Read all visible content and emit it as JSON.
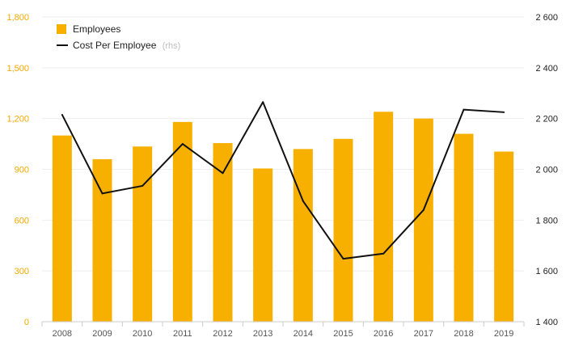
{
  "chart_data": {
    "type": "bar",
    "categories": [
      "2008",
      "2009",
      "2010",
      "2011",
      "2012",
      "2013",
      "2014",
      "2015",
      "2016",
      "2017",
      "2018",
      "2019"
    ],
    "series": [
      {
        "name": "Employees",
        "type": "bar",
        "axis": "left",
        "color": "#f7b000",
        "values": [
          1100,
          960,
          1035,
          1180,
          1055,
          905,
          1020,
          1080,
          1240,
          1200,
          1110,
          1005
        ]
      },
      {
        "name": "Cost Per Employee",
        "suffix": "(rhs)",
        "type": "line",
        "axis": "right",
        "color": "#111111",
        "values": [
          2215,
          1905,
          1935,
          2100,
          1985,
          2265,
          1875,
          1648,
          1668,
          1840,
          2235,
          2225
        ]
      }
    ],
    "y_left": {
      "ylim": [
        0,
        1800
      ],
      "ticks": [
        "0",
        "300",
        "600",
        "900",
        "1,200",
        "1,500",
        "1,800"
      ],
      "tick_values": [
        0,
        300,
        600,
        900,
        1200,
        1500,
        1800
      ],
      "color": "#f5a800"
    },
    "y_right": {
      "ylim": [
        1400,
        2600
      ],
      "ticks": [
        "1 400",
        "1 600",
        "1 800",
        "2 000",
        "2 200",
        "2 400",
        "2 600"
      ],
      "tick_values": [
        1400,
        1600,
        1800,
        2000,
        2200,
        2400,
        2600
      ]
    },
    "grid": true,
    "legend_position": "top-left"
  }
}
